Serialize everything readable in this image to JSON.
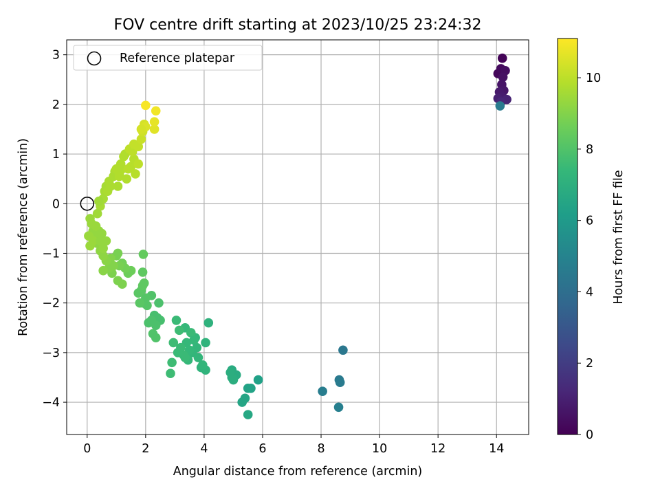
{
  "chart_data": {
    "type": "scatter",
    "title": "FOV centre drift starting at 2023/10/25 23:24:32",
    "xlabel": "Angular distance from reference (arcmin)",
    "ylabel": "Rotation from reference (arcmin)",
    "xlim": [
      -0.7,
      15.1
    ],
    "ylim": [
      -4.65,
      3.3
    ],
    "xticks": [
      0,
      2,
      4,
      6,
      8,
      10,
      12,
      14
    ],
    "yticks": [
      -4,
      -3,
      -2,
      -1,
      0,
      1,
      2,
      3
    ],
    "grid": true,
    "legend": {
      "position": "top-left",
      "entries": [
        "Reference platepar"
      ]
    },
    "reference_point": {
      "x": 0,
      "y": 0
    },
    "colorbar": {
      "label": "Hours from first FF file",
      "range": [
        0,
        11.1
      ],
      "ticks": [
        0,
        2,
        4,
        6,
        8,
        10
      ],
      "colormap": "viridis",
      "colors": [
        "#440154",
        "#482878",
        "#3e4989",
        "#31688e",
        "#26828e",
        "#1f9e89",
        "#35b779",
        "#6ece58",
        "#b5de2b",
        "#fde725"
      ]
    },
    "points": [
      [
        14.2,
        2.93,
        0.1
      ],
      [
        14.05,
        2.62,
        0.2
      ],
      [
        14.15,
        2.72,
        0.3
      ],
      [
        14.3,
        2.68,
        0.4
      ],
      [
        14.22,
        2.55,
        0.5
      ],
      [
        14.18,
        2.4,
        0.6
      ],
      [
        14.25,
        2.28,
        0.7
      ],
      [
        14.1,
        2.25,
        0.8
      ],
      [
        14.2,
        2.15,
        0.9
      ],
      [
        14.05,
        2.12,
        1.0
      ],
      [
        14.35,
        2.1,
        1.1
      ],
      [
        14.15,
        2.05,
        1.2
      ],
      [
        14.12,
        1.97,
        4.6
      ],
      [
        8.75,
        -2.95,
        4.4
      ],
      [
        8.62,
        -3.55,
        4.5
      ],
      [
        8.65,
        -3.6,
        4.6
      ],
      [
        8.05,
        -3.78,
        4.7
      ],
      [
        8.6,
        -4.1,
        4.8
      ],
      [
        5.85,
        -3.55,
        6.3
      ],
      [
        5.5,
        -3.72,
        6.4
      ],
      [
        5.6,
        -3.72,
        6.4
      ],
      [
        5.4,
        -3.92,
        6.5
      ],
      [
        5.3,
        -4.0,
        6.5
      ],
      [
        5.5,
        -4.25,
        6.6
      ],
      [
        4.95,
        -3.35,
        6.8
      ],
      [
        5.1,
        -3.45,
        6.8
      ],
      [
        4.95,
        -3.5,
        6.9
      ],
      [
        5.0,
        -3.55,
        6.9
      ],
      [
        4.9,
        -3.4,
        6.9
      ],
      [
        4.15,
        -2.4,
        7.1
      ],
      [
        4.05,
        -2.8,
        7.2
      ],
      [
        3.9,
        -3.3,
        7.2
      ],
      [
        4.05,
        -3.35,
        7.2
      ],
      [
        3.95,
        -3.25,
        7.3
      ],
      [
        3.7,
        -2.7,
        7.3
      ],
      [
        3.75,
        -2.9,
        7.3
      ],
      [
        3.6,
        -3.0,
        7.3
      ],
      [
        3.45,
        -3.15,
        7.4
      ],
      [
        3.35,
        -2.5,
        7.4
      ],
      [
        3.4,
        -2.8,
        7.4
      ],
      [
        3.5,
        -2.95,
        7.4
      ],
      [
        3.3,
        -3.05,
        7.5
      ],
      [
        3.2,
        -2.9,
        7.5
      ],
      [
        3.1,
        -3.0,
        7.5
      ],
      [
        3.05,
        -2.35,
        7.5
      ],
      [
        2.95,
        -2.8,
        7.6
      ],
      [
        2.9,
        -3.2,
        7.6
      ],
      [
        2.85,
        -3.42,
        7.6
      ],
      [
        3.15,
        -2.55,
        7.6
      ],
      [
        3.55,
        -2.6,
        7.5
      ],
      [
        3.65,
        -2.75,
        7.4
      ],
      [
        3.8,
        -3.1,
        7.3
      ],
      [
        3.35,
        -3.1,
        7.5
      ],
      [
        2.5,
        -2.35,
        7.8
      ],
      [
        2.4,
        -2.3,
        7.8
      ],
      [
        2.3,
        -2.25,
        7.8
      ],
      [
        2.2,
        -2.35,
        7.9
      ],
      [
        2.1,
        -2.4,
        7.9
      ],
      [
        2.45,
        -2.0,
        7.9
      ],
      [
        2.35,
        -2.45,
        7.9
      ],
      [
        2.25,
        -2.62,
        8.0
      ],
      [
        2.35,
        -2.7,
        8.0
      ],
      [
        2.2,
        -1.85,
        8.0
      ],
      [
        2.05,
        -2.05,
        8.1
      ],
      [
        2.0,
        -1.9,
        8.1
      ],
      [
        1.9,
        -2.0,
        8.1
      ],
      [
        1.8,
        -2.0,
        8.2
      ],
      [
        1.85,
        -1.75,
        8.2
      ],
      [
        1.75,
        -1.8,
        8.2
      ],
      [
        1.95,
        -1.6,
        8.3
      ],
      [
        1.9,
        -1.65,
        8.3
      ],
      [
        1.9,
        -1.38,
        8.3
      ],
      [
        1.92,
        -1.02,
        8.4
      ],
      [
        1.5,
        -1.35,
        8.6
      ],
      [
        1.4,
        -1.4,
        8.6
      ],
      [
        1.3,
        -1.3,
        8.7
      ],
      [
        1.2,
        -1.2,
        8.7
      ],
      [
        1.1,
        -1.25,
        8.8
      ],
      [
        1.05,
        -1.0,
        8.8
      ],
      [
        1.0,
        -1.05,
        8.8
      ],
      [
        1.05,
        -1.55,
        8.9
      ],
      [
        1.2,
        -1.62,
        8.9
      ],
      [
        0.85,
        -1.4,
        8.9
      ],
      [
        0.75,
        -1.3,
        9.0
      ],
      [
        0.9,
        -1.25,
        9.0
      ],
      [
        0.8,
        -1.1,
        9.0
      ],
      [
        0.55,
        -1.35,
        9.1
      ],
      [
        0.65,
        -1.15,
        9.1
      ],
      [
        0.55,
        -1.05,
        9.2
      ],
      [
        0.45,
        -0.95,
        9.2
      ],
      [
        0.35,
        -0.8,
        9.2
      ],
      [
        0.3,
        -0.65,
        9.3
      ],
      [
        0.2,
        -0.55,
        9.3
      ],
      [
        0.15,
        -0.4,
        9.4
      ],
      [
        0.1,
        -0.3,
        9.4
      ],
      [
        0.05,
        -0.65,
        9.4
      ],
      [
        0.1,
        -0.85,
        9.4
      ],
      [
        0.2,
        -0.75,
        9.4
      ],
      [
        0.4,
        -0.55,
        9.3
      ],
      [
        0.5,
        -0.6,
        9.3
      ],
      [
        0.45,
        -0.75,
        9.3
      ],
      [
        0.65,
        -0.75,
        9.3
      ],
      [
        0.55,
        -0.9,
        9.3
      ],
      [
        0.3,
        -0.45,
        9.4
      ],
      [
        0.45,
        -0.05,
        9.6
      ],
      [
        0.55,
        0.1,
        9.6
      ],
      [
        0.6,
        0.25,
        9.6
      ],
      [
        0.65,
        0.35,
        9.6
      ],
      [
        0.7,
        0.25,
        9.7
      ],
      [
        0.8,
        0.35,
        9.7
      ],
      [
        0.75,
        0.45,
        9.7
      ],
      [
        0.9,
        0.55,
        9.7
      ],
      [
        0.95,
        0.65,
        9.7
      ],
      [
        1.05,
        0.35,
        9.7
      ],
      [
        1.1,
        0.6,
        9.8
      ],
      [
        1.2,
        0.7,
        9.8
      ],
      [
        1.15,
        0.8,
        9.8
      ],
      [
        1.25,
        0.95,
        9.8
      ],
      [
        1.3,
        1.0,
        9.8
      ],
      [
        1.35,
        0.5,
        9.8
      ],
      [
        1.4,
        0.7,
        9.9
      ],
      [
        1.5,
        0.75,
        9.9
      ],
      [
        1.6,
        0.9,
        9.9
      ],
      [
        1.65,
        0.6,
        9.9
      ],
      [
        1.75,
        0.8,
        10.0
      ],
      [
        1.45,
        1.1,
        10.0
      ],
      [
        1.55,
        1.05,
        10.0
      ],
      [
        1.6,
        1.2,
        10.1
      ],
      [
        1.75,
        1.15,
        10.1
      ],
      [
        1.85,
        1.3,
        10.2
      ],
      [
        1.9,
        1.45,
        10.3
      ],
      [
        1.95,
        1.6,
        10.4
      ],
      [
        2.0,
        1.55,
        10.5
      ],
      [
        1.85,
        1.5,
        10.4
      ],
      [
        2.3,
        1.5,
        10.6
      ],
      [
        2.3,
        1.65,
        10.7
      ],
      [
        2.35,
        1.87,
        10.9
      ],
      [
        2.0,
        1.98,
        11.0
      ],
      [
        0.4,
        0.05,
        9.5
      ],
      [
        0.35,
        -0.2,
        9.5
      ],
      [
        1.0,
        0.7,
        9.8
      ],
      [
        1.1,
        0.55,
        9.8
      ]
    ]
  }
}
